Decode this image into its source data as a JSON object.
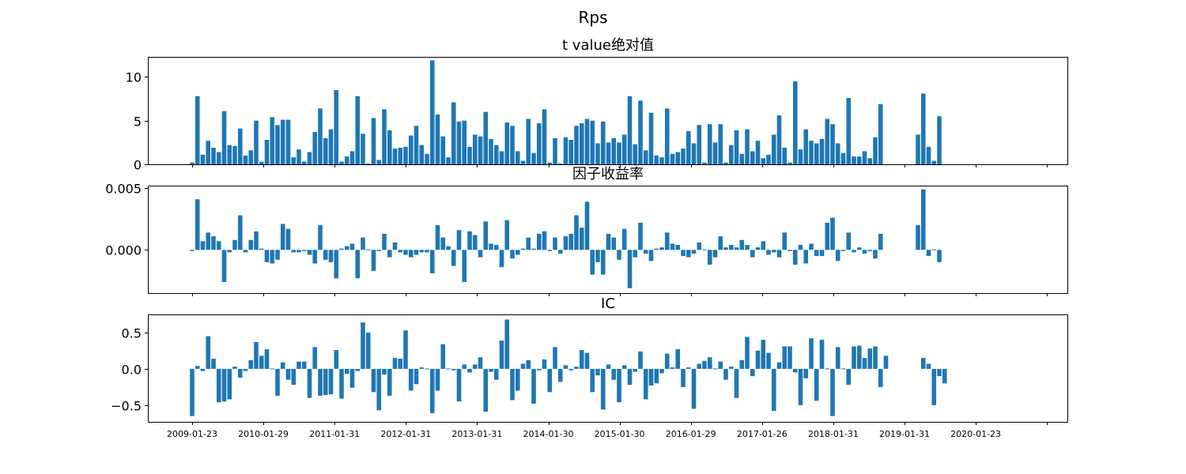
{
  "chart_data": {
    "type": "bar",
    "suptitle": "Rps",
    "x_tick_labels": [
      "2009-01-23",
      "2010-01-29",
      "2011-01-31",
      "2012-01-31",
      "2013-01-31",
      "2014-01-30",
      "2015-01-30",
      "2016-01-29",
      "2017-01-26",
      "2018-01-31",
      "2019-01-31",
      "2020-01-23",
      ""
    ],
    "panels": [
      {
        "title": "t value绝对值",
        "ylim": [
          0,
          12.3
        ],
        "yticks": [
          0,
          5,
          10
        ],
        "ytick_labels": [
          "0",
          "5",
          "10"
        ],
        "values": [
          0.2,
          7.8,
          1.1,
          2.7,
          1.9,
          1.4,
          6.1,
          2.2,
          2.1,
          4.1,
          1.0,
          1.6,
          5.0,
          0.3,
          2.8,
          5.4,
          4.5,
          5.1,
          5.1,
          0.8,
          1.7,
          0.3,
          1.4,
          3.7,
          6.4,
          3.0,
          4.0,
          8.5,
          0.3,
          0.9,
          1.5,
          7.8,
          3.5,
          0.1,
          5.3,
          0.5,
          6.3,
          3.9,
          1.8,
          1.9,
          2.0,
          3.3,
          4.4,
          2.2,
          1.2,
          11.9,
          5.7,
          3.2,
          0.8,
          7.1,
          4.9,
          5.0,
          2.0,
          3.4,
          3.2,
          6.0,
          2.9,
          2.2,
          1.5,
          4.8,
          4.4,
          1.5,
          0.4,
          5.2,
          1.3,
          4.7,
          6.3,
          0.2,
          3.0,
          0.1,
          3.1,
          2.8,
          4.4,
          4.7,
          5.2,
          5.0,
          2.4,
          4.9,
          2.5,
          3.0,
          2.5,
          3.4,
          7.8,
          2.3,
          7.3,
          1.6,
          5.9,
          1.0,
          0.8,
          6.4,
          1.2,
          1.4,
          1.8,
          3.8,
          2.4,
          4.5,
          0.2,
          4.6,
          2.5,
          4.6,
          0.2,
          2.2,
          3.9,
          1.2,
          4.0,
          1.5,
          2.7,
          0.7,
          1.1,
          3.4,
          5.6,
          1.9,
          0.2,
          9.5,
          1.7,
          4.0,
          2.7,
          2.4,
          2.9,
          5.2,
          4.6,
          2.4,
          1.3,
          7.6,
          0.9,
          0.9,
          1.5,
          0.7,
          3.1,
          6.9,
          null,
          null,
          null,
          null,
          null,
          null,
          3.4,
          8.1,
          2.0,
          0.4,
          5.5
        ]
      },
      {
        "title": "因子收益率",
        "ylim": [
          -0.0035,
          0.0052
        ],
        "yticks": [
          0.0,
          0.005
        ],
        "ytick_labels": [
          "0.000",
          "0.005"
        ],
        "values": [
          -0.0001,
          0.0041,
          0.0007,
          0.0014,
          0.0011,
          0.0007,
          -0.0026,
          -0.0002,
          0.0008,
          0.0028,
          -0.0002,
          0.0008,
          0.0015,
          0.0001,
          -0.001,
          -0.0011,
          -0.0008,
          0.0021,
          0.0017,
          -0.0002,
          -0.0002,
          -0.0001,
          -0.0004,
          -0.0011,
          0.002,
          -0.0008,
          -0.001,
          -0.0023,
          0.0001,
          0.0003,
          0.0005,
          -0.0023,
          0.001,
          0.0,
          -0.0017,
          -0.0001,
          0.0013,
          -0.0006,
          0.0006,
          -0.0002,
          -0.0004,
          -0.0006,
          -0.0004,
          -0.0002,
          -0.0002,
          -0.0019,
          0.002,
          0.001,
          0.0003,
          -0.0013,
          0.0016,
          -0.0026,
          0.0015,
          0.0012,
          -0.0006,
          0.0023,
          0.0005,
          0.0004,
          -0.0014,
          0.0024,
          -0.0007,
          -0.0004,
          0.0001,
          0.001,
          0.0001,
          0.0013,
          0.0015,
          -0.0001,
          0.001,
          -0.0003,
          0.0011,
          0.0013,
          0.0028,
          0.0018,
          0.0039,
          -0.002,
          -0.001,
          -0.002,
          0.0013,
          0.001,
          -0.0008,
          0.0017,
          -0.0031,
          -0.0006,
          0.0022,
          -0.0003,
          -0.0009,
          0.0001,
          0.0002,
          0.0014,
          0.0005,
          0.0004,
          -0.0005,
          -0.0006,
          -0.0003,
          0.0006,
          0.0,
          -0.0012,
          -0.0006,
          0.0011,
          0.0002,
          0.0004,
          0.0002,
          0.0008,
          0.0004,
          -0.0006,
          0.0002,
          0.0007,
          -0.0004,
          -0.0002,
          -0.0006,
          0.0014,
          -0.0001,
          -0.0012,
          0.0004,
          -0.0011,
          0.0005,
          -0.0005,
          -0.0005,
          0.0022,
          0.0026,
          -0.0009,
          -0.0001,
          0.0014,
          -0.0002,
          0.0002,
          -0.0003,
          -0.0001,
          -0.0007,
          0.0013,
          null,
          null,
          null,
          null,
          null,
          null,
          0.002,
          0.0049,
          -0.0005,
          0.0,
          -0.001
        ]
      },
      {
        "title": "IC",
        "ylim": [
          -0.73,
          0.75
        ],
        "yticks": [
          -0.5,
          0.0,
          0.5
        ],
        "ytick_labels": [
          "−0.5",
          "0.0",
          "0.5"
        ],
        "values": [
          -0.65,
          0.04,
          -0.03,
          0.45,
          0.14,
          -0.46,
          -0.45,
          -0.42,
          0.03,
          -0.12,
          -0.03,
          0.12,
          0.37,
          0.18,
          0.27,
          -0.01,
          -0.37,
          0.09,
          -0.15,
          -0.22,
          0.1,
          0.1,
          -0.4,
          0.3,
          -0.37,
          -0.36,
          -0.35,
          0.26,
          -0.41,
          -0.07,
          -0.26,
          -0.03,
          0.64,
          0.5,
          -0.32,
          -0.57,
          -0.08,
          -0.37,
          0.15,
          0.14,
          0.53,
          -0.3,
          -0.21,
          0.02,
          0.0,
          -0.61,
          -0.3,
          0.34,
          0.0,
          -0.02,
          -0.45,
          0.06,
          -0.05,
          0.06,
          0.16,
          -0.59,
          -0.04,
          -0.15,
          0.39,
          0.68,
          -0.43,
          -0.3,
          0.07,
          0.12,
          -0.48,
          -0.02,
          0.13,
          -0.32,
          0.3,
          -0.18,
          0.05,
          -0.02,
          0.03,
          0.26,
          0.22,
          -0.32,
          -0.09,
          -0.56,
          0.06,
          -0.15,
          -0.46,
          0.05,
          -0.22,
          -0.04,
          0.24,
          -0.42,
          -0.23,
          -0.2,
          -0.06,
          0.21,
          0.02,
          0.27,
          -0.25,
          0.02,
          -0.55,
          0.07,
          0.11,
          0.16,
          -0.01,
          0.1,
          -0.15,
          0.03,
          -0.4,
          0.12,
          0.44,
          -0.1,
          0.25,
          0.4,
          0.22,
          -0.58,
          0.09,
          0.31,
          0.31,
          -0.05,
          -0.5,
          -0.13,
          0.42,
          -0.44,
          0.4,
          0.01,
          -0.65,
          0.3,
          0.0,
          -0.22,
          0.31,
          0.32,
          0.15,
          0.28,
          0.31,
          -0.25,
          0.18,
          null,
          null,
          null,
          null,
          null,
          null,
          0.15,
          0.07,
          -0.5,
          -0.1,
          -0.2
        ]
      }
    ]
  }
}
